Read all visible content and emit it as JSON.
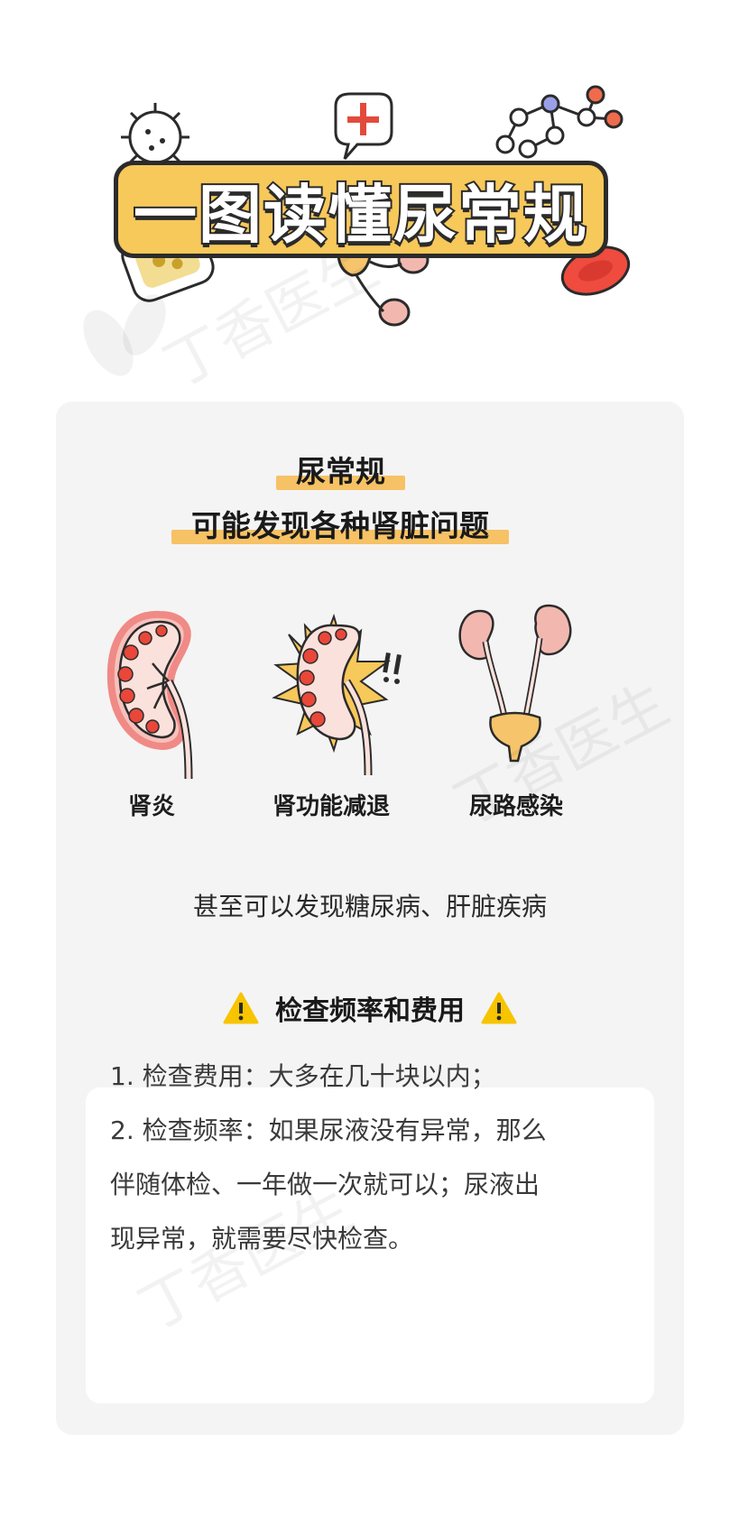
{
  "header": {
    "title": "一图读懂尿常规"
  },
  "watermark": {
    "text": "丁香医生"
  },
  "card": {
    "headline": [
      "尿常规",
      "可能发现各种肾脏问题"
    ],
    "conditions": [
      {
        "label": "肾炎",
        "icon": "inflamed-kidney-icon"
      },
      {
        "label": "肾功能减退",
        "icon": "failing-kidney-icon"
      },
      {
        "label": "尿路感染",
        "icon": "urinary-tract-icon"
      }
    ],
    "extra_note": "甚至可以发现糖尿病、肝脏疾病",
    "section": {
      "title": "检查频率和费用",
      "items": [
        "1. 检查费用：大多在几十块以内；",
        "2. 检查频率：如果尿液没有异常，那么",
        "伴随体检、一年做一次就可以；尿液出",
        "现异常，就需要尽快检查。"
      ]
    }
  },
  "colors": {
    "accent_yellow": "#f7c85a",
    "highlight": "#f6c265",
    "kidney_pink": "#f2b8b0",
    "kidney_red": "#e24b3b",
    "card_bg": "#f4f4f4"
  }
}
